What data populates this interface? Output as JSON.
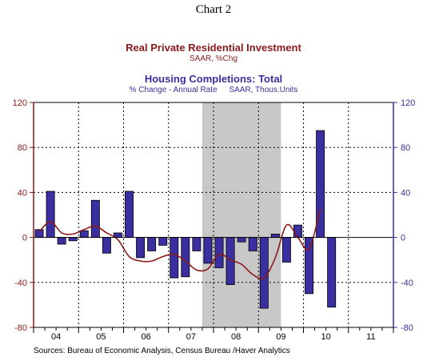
{
  "page_title": "Chart 2",
  "chart_data": {
    "type": "bar",
    "title": "Real Private Residential Investment",
    "title_subtitle": "SAAR, %Chg",
    "title2": "Housing Completions: Total",
    "subtitle_left": "% Change - Annual Rate",
    "subtitle_right": "SAAR, Thous.Units",
    "ylim": [
      -80,
      120
    ],
    "y_ticks": [
      120,
      80,
      40,
      0,
      -40,
      -80
    ],
    "y_tick_labels": [
      "120",
      "80",
      "40",
      "0",
      "-40",
      "-80"
    ],
    "x_tick_labels": [
      "04",
      "05",
      "06",
      "07",
      "08",
      "09",
      "10",
      "11"
    ],
    "quarters_start": "2004Q1",
    "num_quarters": 32,
    "recession_shading": {
      "start_quarter_index": 15,
      "end_quarter_index": 22
    },
    "grid": true,
    "colors": {
      "bars": "#3a2fa0",
      "bar_outline": "#000000",
      "line": "#8b1a1a",
      "shading": "#c8c8c8",
      "right_axis": "#3a2fa0",
      "left_axis": "#8b1a1a"
    },
    "series": [
      {
        "name": "Housing Completions: Total",
        "type": "bar",
        "values": [
          7,
          41,
          -6,
          -3,
          6,
          33,
          -14,
          4,
          41,
          -18,
          -12,
          -7,
          -36,
          -35,
          -12,
          -23,
          -27,
          -42,
          -4,
          -12,
          -63,
          3,
          -22,
          11,
          -50,
          95,
          -62,
          null,
          null,
          null,
          null,
          null
        ]
      },
      {
        "name": "Real Private Residential Investment",
        "type": "line",
        "values": [
          5,
          14,
          4,
          3,
          7,
          10,
          4,
          -2,
          -17,
          -21,
          -21,
          -17,
          -15,
          -21,
          -29,
          -28,
          -15,
          -20,
          -24,
          -33,
          -36,
          -18,
          11,
          0,
          -10,
          25,
          null,
          null,
          null,
          null,
          null,
          null
        ]
      }
    ],
    "source_note": "Sources:  Bureau of Economic Analysis, Census Bureau /Haver Analytics"
  }
}
